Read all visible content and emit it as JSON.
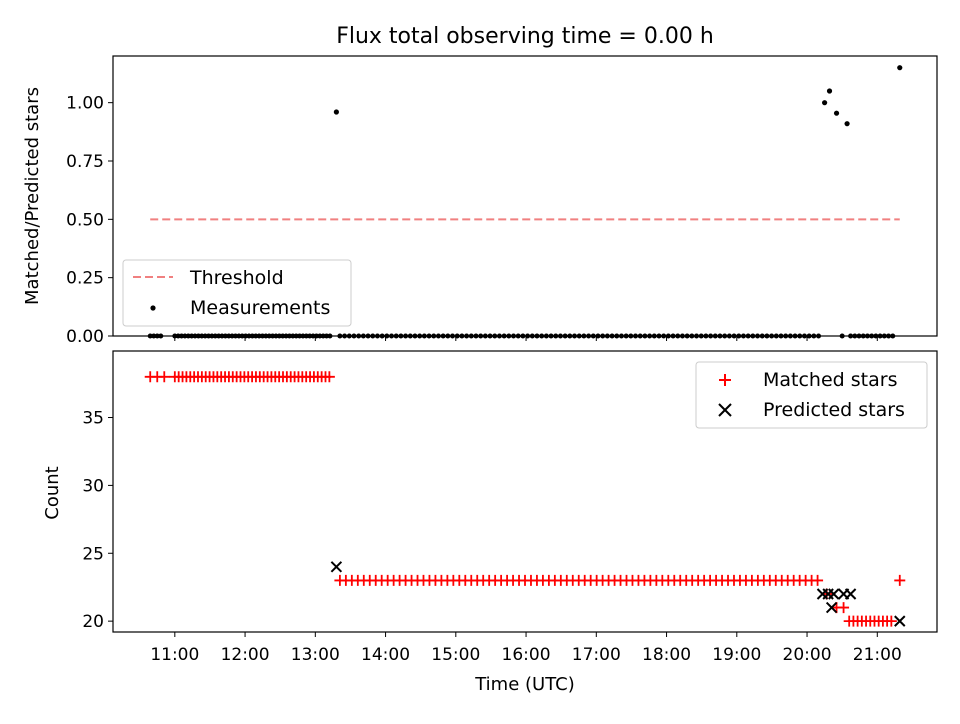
{
  "chart_data": [
    {
      "type": "scatter",
      "title": "Flux total observing time = 0.00 h",
      "xlabel": "",
      "ylabel": "Matched/Predicted stars",
      "xlim": [
        10.12,
        21.85
      ],
      "ylim": [
        0,
        1.2
      ],
      "yticks": [
        0.0,
        0.25,
        0.5,
        0.75,
        1.0
      ],
      "yticklabels": [
        "0.00",
        "0.25",
        "0.50",
        "0.75",
        "1.00"
      ],
      "legend": "lower-left",
      "threshold": {
        "name": "Threshold",
        "value": 0.5,
        "x": [
          10.65,
          21.32
        ],
        "color": "#f08080"
      },
      "measurements": {
        "name": "Measurements",
        "color": "#000000",
        "x": [
          13.3,
          20.25,
          20.32,
          20.42,
          20.57,
          21.32
        ],
        "y": [
          0.96,
          1.0,
          1.05,
          0.955,
          0.91,
          1.15
        ],
        "zero_runs": [
          [
            10.65,
            10.82,
            0.05
          ],
          [
            11.0,
            13.25,
            0.048
          ],
          [
            13.35,
            20.18,
            0.0668
          ],
          [
            20.5,
            20.5,
            1
          ],
          [
            20.62,
            21.22,
            0.06
          ]
        ]
      }
    },
    {
      "type": "scatter",
      "title": "",
      "xlabel": "Time (UTC)",
      "ylabel": "Count",
      "xlim": [
        10.12,
        21.85
      ],
      "ylim": [
        19.2,
        39.9
      ],
      "yticks": [
        20,
        25,
        30,
        35
      ],
      "yticklabels": [
        "20",
        "25",
        "30",
        "35"
      ],
      "xticks": [
        11,
        12,
        13,
        14,
        15,
        16,
        17,
        18,
        19,
        20,
        21
      ],
      "xticklabels": [
        "11:00",
        "12:00",
        "13:00",
        "14:00",
        "15:00",
        "16:00",
        "17:00",
        "18:00",
        "19:00",
        "20:00",
        "21:00"
      ],
      "legend": "top-right",
      "series": [
        {
          "name": "Matched stars",
          "marker": "plus",
          "color": "#ff0000",
          "runs": [
            [
              10.65,
              10.85,
              0.1,
              38
            ],
            [
              11.0,
              13.25,
              0.055,
              38
            ],
            [
              13.35,
              20.18,
              0.085,
              23
            ],
            [
              20.28,
              20.28,
              1,
              22
            ],
            [
              20.42,
              20.52,
              0.1,
              21
            ],
            [
              20.6,
              21.2,
              0.06,
              20
            ]
          ],
          "points": [
            [
              21.32,
              23
            ]
          ]
        },
        {
          "name": "Predicted stars",
          "marker": "x",
          "color": "#000000",
          "runs": [],
          "points": [
            [
              13.3,
              24
            ],
            [
              20.22,
              22
            ],
            [
              20.3,
              22
            ],
            [
              20.35,
              21
            ],
            [
              20.38,
              22
            ],
            [
              20.52,
              22
            ],
            [
              20.62,
              22
            ],
            [
              21.32,
              20
            ]
          ]
        }
      ]
    }
  ]
}
